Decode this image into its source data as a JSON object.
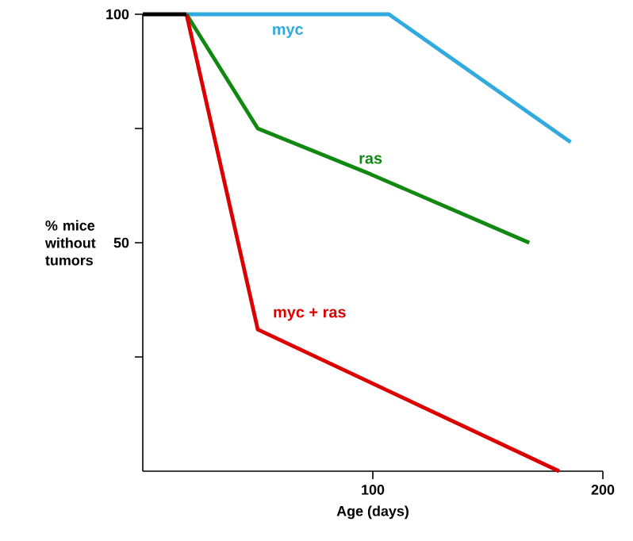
{
  "chart_data": {
    "type": "line",
    "xlabel": "Age (days)",
    "ylabel": "% mice without tumors",
    "xlim": [
      0,
      200
    ],
    "ylim": [
      0,
      100
    ],
    "xticks": [
      100,
      200
    ],
    "yticks": [
      {
        "value": 25,
        "label": null
      },
      50,
      {
        "value": 75,
        "label": null
      },
      100
    ],
    "grid": false,
    "legend": false,
    "marker": "none",
    "line_style": "solid",
    "series": [
      {
        "name": "myc",
        "color": "#33aadd",
        "x": [
          19,
          107,
          186
        ],
        "values": [
          100,
          100,
          72
        ]
      },
      {
        "name": "ras",
        "color": "#118811",
        "x": [
          19,
          50,
          99,
          168
        ],
        "values": [
          100,
          75,
          65,
          50
        ]
      },
      {
        "name": "myc + ras",
        "color": "#dd0000",
        "x": [
          19,
          50,
          181
        ],
        "values": [
          100,
          31,
          0
        ]
      },
      {
        "color": "#000000",
        "x": [
          0,
          19
        ],
        "values": [
          100,
          100
        ]
      }
    ]
  }
}
